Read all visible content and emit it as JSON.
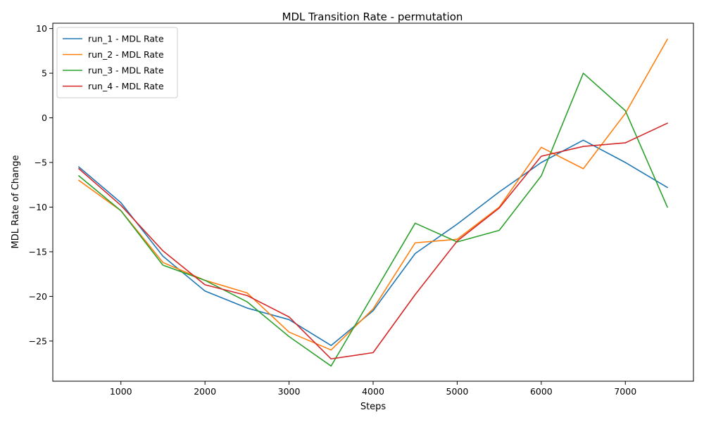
{
  "chart_data": {
    "type": "line",
    "title": "MDL Transition Rate - permutation",
    "xlabel": "Steps",
    "ylabel": "MDL Rate of Change",
    "xlim": [
      190,
      7810
    ],
    "ylim": [
      -29.5,
      10.6
    ],
    "xticks": [
      1000,
      2000,
      3000,
      4000,
      5000,
      6000,
      7000
    ],
    "yticks": [
      -25,
      -20,
      -15,
      -10,
      -5,
      0,
      5,
      10
    ],
    "grid": false,
    "legend_position": "top-left",
    "x": [
      500,
      1000,
      1500,
      2000,
      2500,
      3000,
      3500,
      4000,
      4500,
      5000,
      5500,
      6000,
      6500,
      7000,
      7500
    ],
    "series": [
      {
        "name": "run_1 - MDL Rate",
        "color": "#1f77b4",
        "values": [
          -5.5,
          -9.5,
          -15.5,
          -19.4,
          -21.3,
          -22.6,
          -25.5,
          -21.6,
          -15.2,
          -11.9,
          -8.3,
          -5.0,
          -2.5,
          -5.0,
          -7.8
        ]
      },
      {
        "name": "run_2 - MDL Rate",
        "color": "#ff7f0e",
        "values": [
          -7.0,
          -10.4,
          -16.2,
          -18.2,
          -19.6,
          -24.0,
          -26.0,
          -21.4,
          -14.0,
          -13.6,
          -10.0,
          -3.3,
          -5.7,
          0.5,
          8.8
        ]
      },
      {
        "name": "run_3 - MDL Rate",
        "color": "#2ca02c",
        "values": [
          -6.5,
          -10.4,
          -16.5,
          -18.2,
          -20.6,
          -24.5,
          -27.8,
          -19.8,
          -11.8,
          -13.9,
          -12.6,
          -6.5,
          5.0,
          0.8,
          -10.0
        ]
      },
      {
        "name": "run_4 - MDL Rate",
        "color": "#d62728",
        "values": [
          -5.7,
          -9.8,
          -14.9,
          -18.7,
          -19.9,
          -22.3,
          -27.0,
          -26.3,
          -19.8,
          -13.8,
          -10.1,
          -4.3,
          -3.2,
          -2.8,
          -0.6
        ]
      }
    ]
  }
}
